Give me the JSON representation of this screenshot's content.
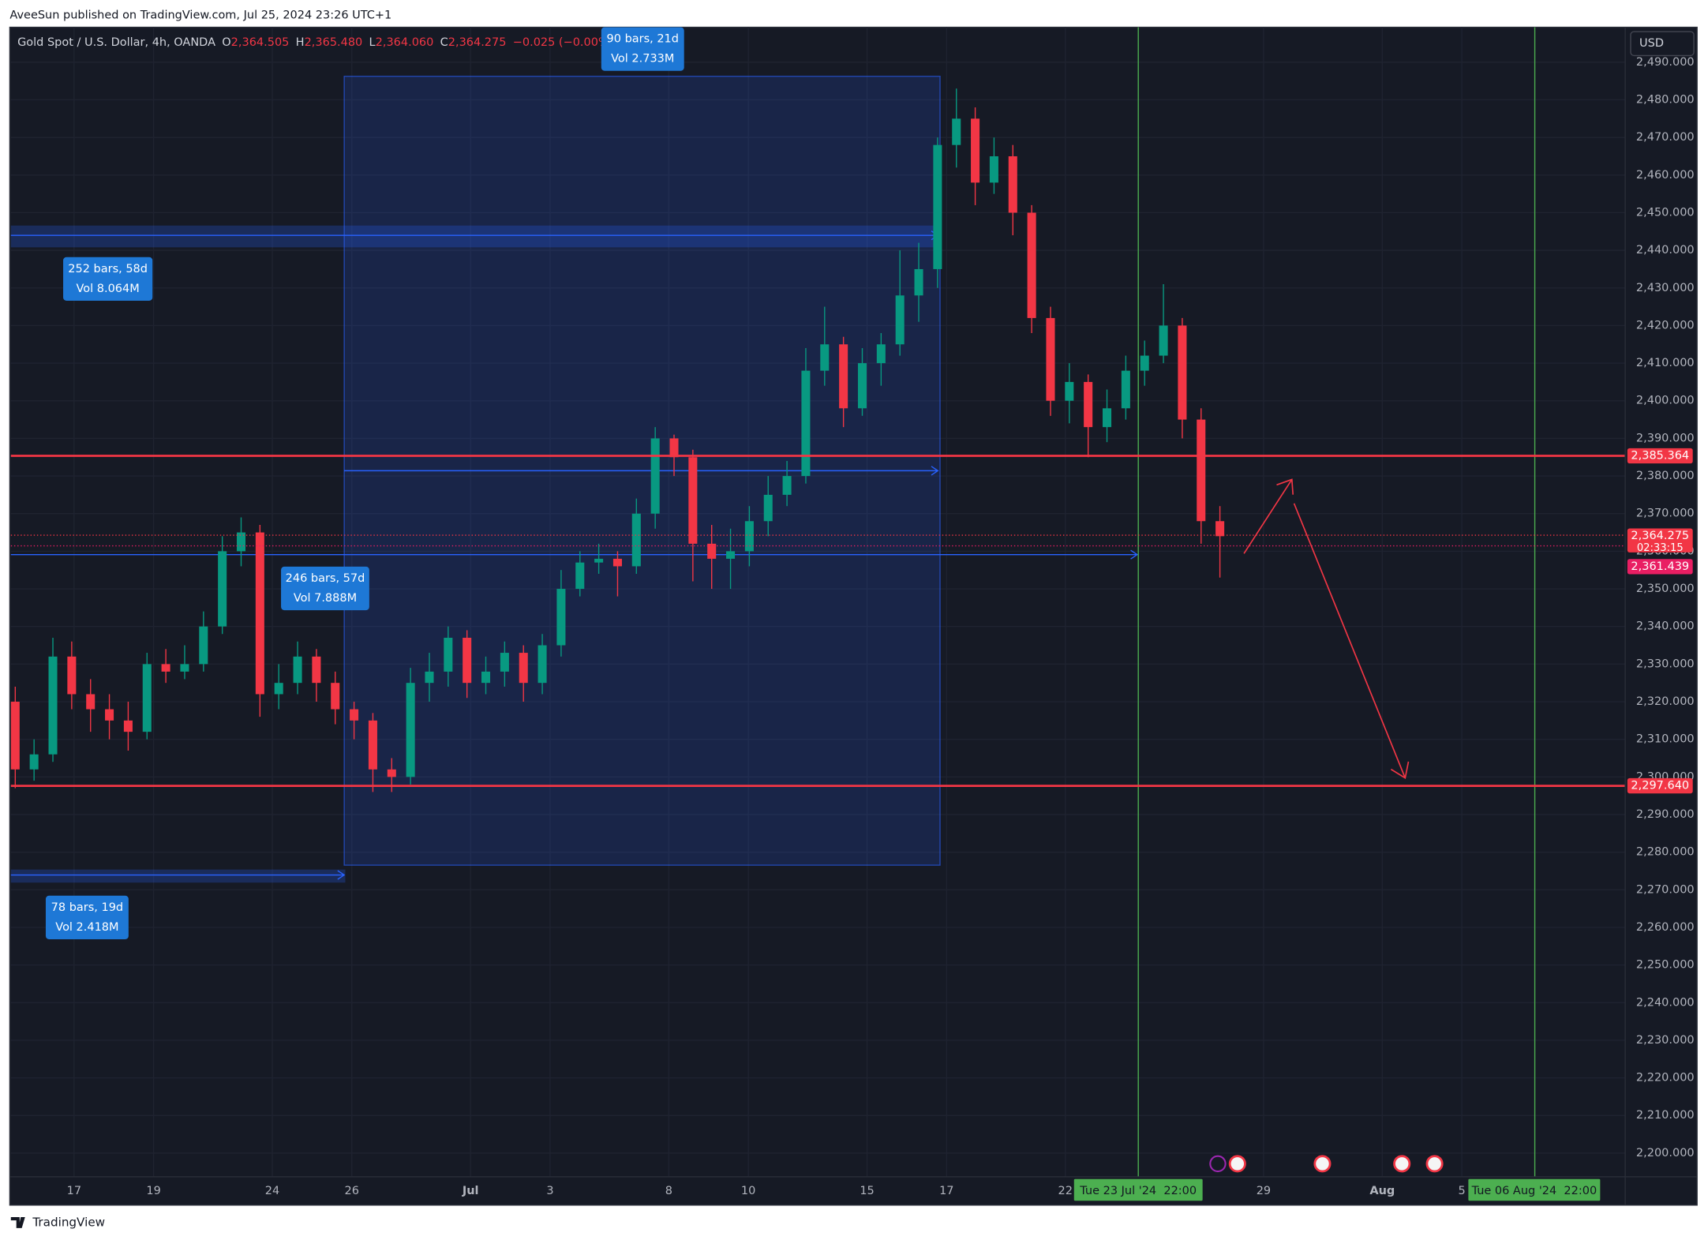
{
  "header": "AveeSun published on TradingView.com, Jul 25, 2024 23:26 UTC+1",
  "legend": {
    "symbol": "Gold Spot / U.S. Dollar, 4h, OANDA",
    "ohlc": [
      {
        "key": "O",
        "value": "2,364.505"
      },
      {
        "key": "H",
        "value": "2,365.480"
      },
      {
        "key": "L",
        "value": "2,364.060"
      },
      {
        "key": "C",
        "value": "2,364.275"
      }
    ],
    "change": "−0.025 (−0.00%)"
  },
  "currency": "USD",
  "chart": {
    "type": "candlestick",
    "up_color": "#089981",
    "down_color": "#f23645",
    "ylim": [
      2193.7,
      2499.3
    ],
    "open": [
      2320,
      2302,
      2306,
      2332,
      2322,
      2318,
      2315,
      2312,
      2330,
      2328,
      2330,
      2340,
      2360,
      2365,
      2322,
      2325,
      2332,
      2325,
      2318,
      2315,
      2302,
      2300,
      2325,
      2328,
      2337,
      2325,
      2328,
      2333,
      2325,
      2335,
      2350,
      2357,
      2358,
      2356,
      2370,
      2390,
      2385,
      2362,
      2358,
      2360,
      2368,
      2375,
      2380,
      2408,
      2415,
      2398,
      2410,
      2415,
      2428,
      2435,
      2468,
      2475,
      2458,
      2465,
      2450,
      2422,
      2400,
      2405,
      2393,
      2398,
      2408,
      2412,
      2420,
      2395,
      2368
    ],
    "high": [
      2324,
      2310,
      2337,
      2336,
      2326,
      2322,
      2320,
      2333,
      2334,
      2335,
      2344,
      2364,
      2369,
      2367,
      2330,
      2336,
      2334,
      2328,
      2320,
      2317,
      2305,
      2329,
      2333,
      2340,
      2339,
      2332,
      2336,
      2335,
      2338,
      2355,
      2360,
      2362,
      2360,
      2374,
      2393,
      2391,
      2387,
      2367,
      2366,
      2372,
      2380,
      2384,
      2414,
      2425,
      2417,
      2414,
      2418,
      2440,
      2442,
      2470,
      2483,
      2478,
      2470,
      2468,
      2452,
      2425,
      2410,
      2407,
      2403,
      2412,
      2416,
      2431,
      2422,
      2398,
      2372
    ],
    "low": [
      2297,
      2299,
      2304,
      2318,
      2312,
      2310,
      2307,
      2310,
      2325,
      2326,
      2328,
      2338,
      2356,
      2316,
      2318,
      2322,
      2320,
      2314,
      2310,
      2296,
      2296,
      2298,
      2320,
      2324,
      2321,
      2322,
      2324,
      2320,
      2322,
      2332,
      2348,
      2354,
      2348,
      2354,
      2366,
      2380,
      2352,
      2350,
      2350,
      2356,
      2364,
      2372,
      2378,
      2404,
      2393,
      2396,
      2404,
      2412,
      2421,
      2430,
      2462,
      2452,
      2455,
      2444,
      2418,
      2396,
      2394,
      2385,
      2389,
      2395,
      2404,
      2410,
      2390,
      2362,
      2353
    ],
    "close": [
      2302,
      2306,
      2332,
      2322,
      2318,
      2315,
      2312,
      2330,
      2328,
      2330,
      2340,
      2360,
      2365,
      2322,
      2325,
      2332,
      2325,
      2318,
      2315,
      2302,
      2300,
      2325,
      2328,
      2337,
      2325,
      2328,
      2333,
      2325,
      2335,
      2350,
      2357,
      2358,
      2356,
      2370,
      2390,
      2385,
      2362,
      2358,
      2360,
      2368,
      2375,
      2380,
      2408,
      2415,
      2398,
      2410,
      2415,
      2428,
      2435,
      2468,
      2475,
      2458,
      2465,
      2450,
      2422,
      2400,
      2405,
      2393,
      2398,
      2408,
      2412,
      2420,
      2395,
      2368,
      2364
    ],
    "yticks": [
      {
        "value": 2490,
        "label": "2,490.000"
      },
      {
        "value": 2480,
        "label": "2,480.000"
      },
      {
        "value": 2470,
        "label": "2,470.000"
      },
      {
        "value": 2460,
        "label": "2,460.000"
      },
      {
        "value": 2450,
        "label": "2,450.000"
      },
      {
        "value": 2440,
        "label": "2,440.000"
      },
      {
        "value": 2430,
        "label": "2,430.000"
      },
      {
        "value": 2420,
        "label": "2,420.000"
      },
      {
        "value": 2410,
        "label": "2,410.000"
      },
      {
        "value": 2400,
        "label": "2,400.000"
      },
      {
        "value": 2390,
        "label": "2,390.000"
      },
      {
        "value": 2380,
        "label": "2,380.000"
      },
      {
        "value": 2370,
        "label": "2,370.000"
      },
      {
        "value": 2360,
        "label": "2,360.000"
      },
      {
        "value": 2350,
        "label": "2,350.000"
      },
      {
        "value": 2340,
        "label": "2,340.000"
      },
      {
        "value": 2330,
        "label": "2,330.000"
      },
      {
        "value": 2320,
        "label": "2,320.000"
      },
      {
        "value": 2310,
        "label": "2,310.000"
      },
      {
        "value": 2300,
        "label": "2,300.000"
      },
      {
        "value": 2290,
        "label": "2,290.000"
      },
      {
        "value": 2280,
        "label": "2,280.000"
      },
      {
        "value": 2270,
        "label": "2,270.000"
      },
      {
        "value": 2260,
        "label": "2,260.000"
      },
      {
        "value": 2250,
        "label": "2,250.000"
      },
      {
        "value": 2240,
        "label": "2,240.000"
      },
      {
        "value": 2230,
        "label": "2,230.000"
      },
      {
        "value": 2220,
        "label": "2,220.000"
      },
      {
        "value": 2210,
        "label": "2,210.000"
      },
      {
        "value": 2200,
        "label": "2,200.000"
      }
    ],
    "date_labels": [
      "17",
      "19",
      "24",
      "26",
      "Jul",
      "3",
      "8",
      "10",
      "15",
      "17",
      "22",
      "29",
      "Aug",
      "5"
    ],
    "price_tags": [
      {
        "value": 2385.364,
        "label": "2,385.364",
        "color": "#f23645"
      },
      {
        "value": 2364.275,
        "label": "2,364.275",
        "color": "#f23645"
      },
      {
        "value": 2361.439,
        "label": "2,361.439",
        "color": "#e91e63"
      },
      {
        "value": 2297.64,
        "label": "2,297.640",
        "color": "#f23645"
      }
    ],
    "countdown": "02:33:15",
    "time_markers": [
      "Tue 23 Jul '24  22:00",
      "Tue 06 Aug '24  22:00"
    ],
    "ranges": [
      {
        "bars": "90 bars, 21d",
        "vol": "Vol 2.733M"
      },
      {
        "bars": "252 bars, 58d",
        "vol": "Vol 8.064M"
      },
      {
        "bars": "246 bars, 57d",
        "vol": "Vol 7.888M"
      },
      {
        "bars": "78 bars, 19d",
        "vol": "Vol 2.418M"
      }
    ]
  },
  "footer": "TradingView"
}
